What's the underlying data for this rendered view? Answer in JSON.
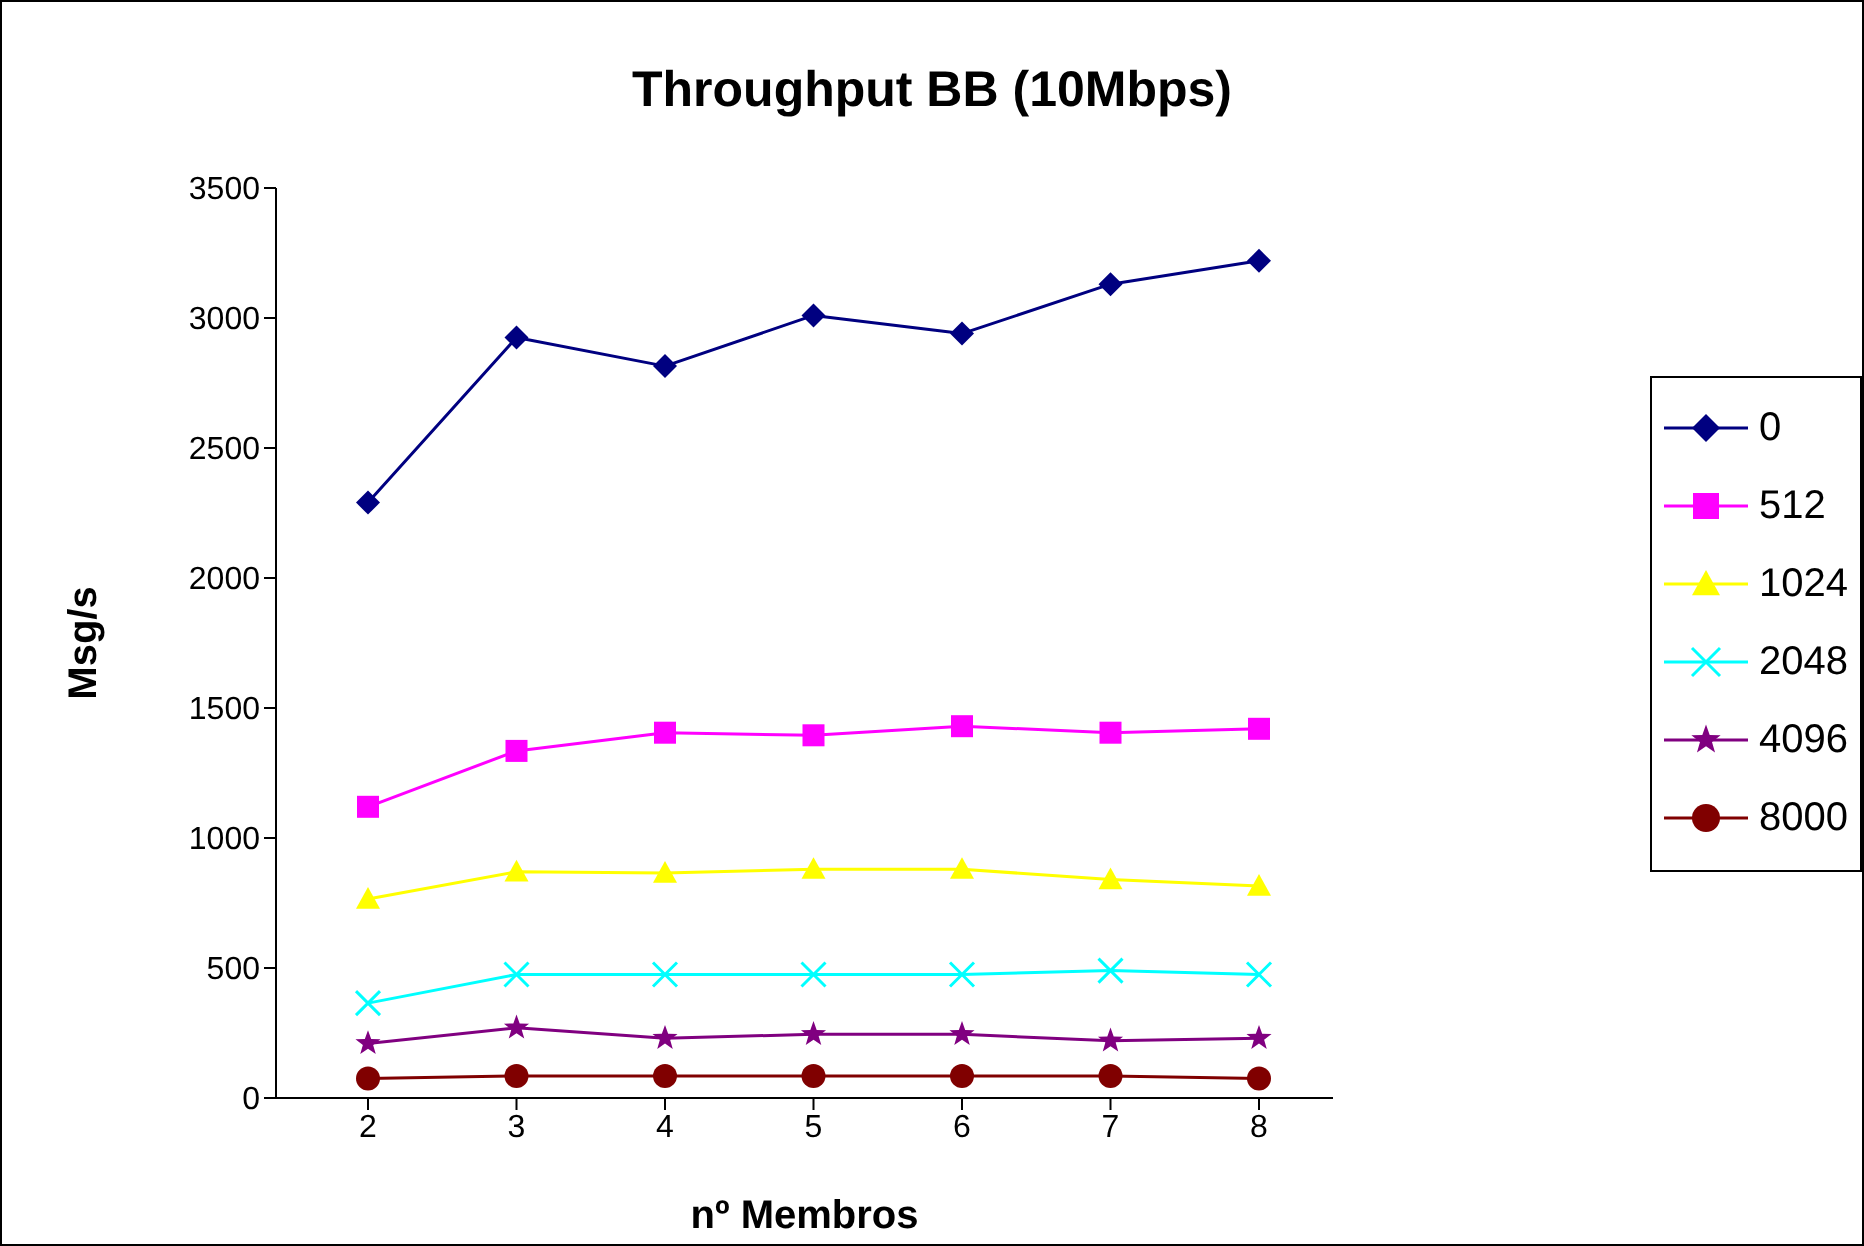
{
  "chart_data": {
    "type": "line",
    "title": "Throughput BB (10Mbps)",
    "xlabel": "nº Membros",
    "ylabel": "Msg/s",
    "categories": [
      "2",
      "3",
      "4",
      "5",
      "6",
      "7",
      "8"
    ],
    "ylim": [
      0,
      3500
    ],
    "yticks": [
      0,
      500,
      1000,
      1500,
      2000,
      2500,
      3000,
      3500
    ],
    "grid": false,
    "legend": "right",
    "series": [
      {
        "name": "0",
        "color": "#000080",
        "marker": "diamond",
        "values": [
          2290,
          2925,
          2815,
          3010,
          2940,
          3130,
          3220
        ]
      },
      {
        "name": "512",
        "color": "#ff00ff",
        "marker": "square",
        "values": [
          1120,
          1335,
          1405,
          1395,
          1430,
          1405,
          1420
        ]
      },
      {
        "name": "1024",
        "color": "#ffff00",
        "marker": "triangle",
        "values": [
          765,
          870,
          865,
          880,
          880,
          840,
          815
        ]
      },
      {
        "name": "2048",
        "color": "#00ffff",
        "marker": "cross",
        "values": [
          365,
          475,
          475,
          475,
          475,
          490,
          475
        ]
      },
      {
        "name": "4096",
        "color": "#800080",
        "marker": "star",
        "values": [
          210,
          270,
          230,
          245,
          245,
          220,
          230
        ]
      },
      {
        "name": "8000",
        "color": "#800000",
        "marker": "circle",
        "values": [
          75,
          85,
          85,
          85,
          85,
          85,
          75
        ]
      }
    ]
  }
}
